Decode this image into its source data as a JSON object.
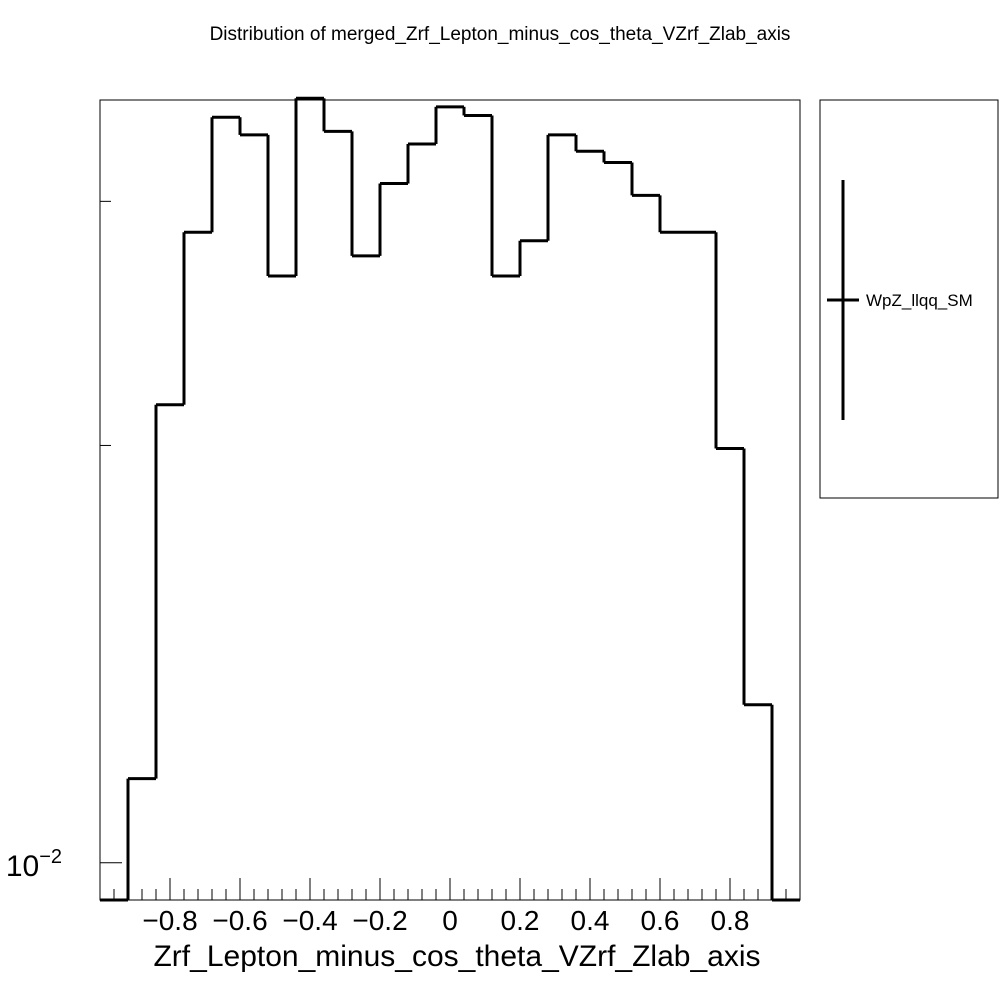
{
  "chart_data": {
    "type": "histogram",
    "title": "Distribution of merged_Zrf_Lepton_minus_cos_theta_VZrf_Zlab_axis",
    "xlabel": "Zrf_Lepton_minus_cos_theta_VZrf_Zlab_axis",
    "ylabel": "",
    "xlim": [
      -1.0,
      1.0
    ],
    "ylim": [
      0.0094,
      0.0355
    ],
    "y_scale": "log",
    "x_tick_labels": [
      "−0.8",
      "−0.6",
      "−0.4",
      "−0.2",
      "0",
      "0.2",
      "0.4",
      "0.6",
      "0.8"
    ],
    "x_tick_values": [
      -0.8,
      -0.6,
      -0.4,
      -0.2,
      0,
      0.2,
      0.4,
      0.6,
      0.8
    ],
    "y_tick_label": "10^{-2}",
    "y_tick_label_base": "10",
    "y_tick_label_exp": "−2",
    "y_tick_value": 0.01,
    "y_minor_ticks": [
      0.02,
      0.03,
      0.04,
      0.05,
      0.06
    ],
    "bin_edges": [
      -1.0,
      -0.92,
      -0.84,
      -0.76,
      -0.68,
      -0.6,
      -0.52,
      -0.44,
      -0.36,
      -0.28,
      -0.2,
      -0.12,
      -0.04,
      0.04,
      0.12,
      0.2,
      0.28,
      0.36,
      0.44,
      0.52,
      0.6,
      0.68,
      0.76,
      0.84,
      0.92,
      1.0
    ],
    "series": [
      {
        "name": "WpZ_llqq_SM",
        "values": [
          0.0,
          0.0115,
          0.0214,
          0.0285,
          0.0345,
          0.0335,
          0.0265,
          0.0356,
          0.0337,
          0.0274,
          0.0309,
          0.033,
          0.0351,
          0.0346,
          0.0265,
          0.0281,
          0.0335,
          0.0326,
          0.032,
          0.0303,
          0.0285,
          0.0285,
          0.0199,
          0.013,
          0.0
        ]
      }
    ],
    "legend": {
      "placement": "right",
      "entries": [
        "WpZ_llqq_SM"
      ]
    },
    "grid": false,
    "colors": {
      "line": "#000000",
      "background": "#ffffff"
    }
  }
}
